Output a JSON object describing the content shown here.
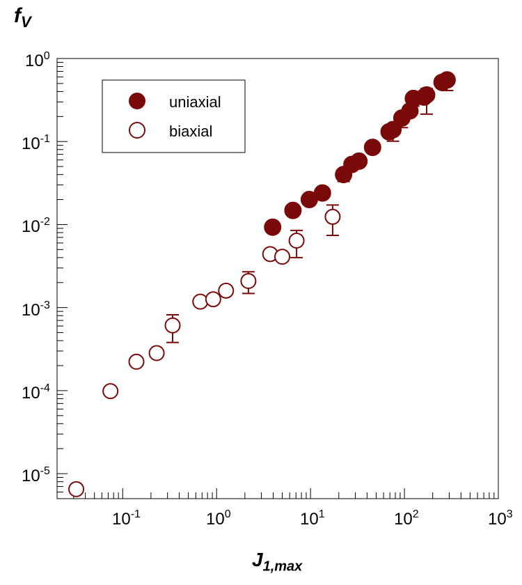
{
  "chart_data": {
    "type": "scatter",
    "x_scale": "log",
    "y_scale": "log",
    "xlim": [
      0.02,
      1000
    ],
    "ylim": [
      5e-06,
      1
    ],
    "grid": false,
    "legend_position": "top-left",
    "ylabel_base": "f",
    "ylabel_sub": "V",
    "xlabel_base": "J",
    "xlabel_sub": "1,max",
    "x_ticks": [
      {
        "base": "10",
        "exp": "-1"
      },
      {
        "base": "10",
        "exp": "0"
      },
      {
        "base": "10",
        "exp": "1"
      },
      {
        "base": "10",
        "exp": "2"
      },
      {
        "base": "10",
        "exp": "3"
      }
    ],
    "y_ticks": [
      {
        "base": "10",
        "exp": "-5"
      },
      {
        "base": "10",
        "exp": "-4"
      },
      {
        "base": "10",
        "exp": "-3"
      },
      {
        "base": "10",
        "exp": "-2"
      },
      {
        "base": "10",
        "exp": "-1"
      },
      {
        "base": "10",
        "exp": "0"
      }
    ],
    "marker_color": "#7a0a0a",
    "series": [
      {
        "name": "uniaxial",
        "marker": "filled-circle",
        "points": [
          {
            "x": 3.95,
            "y": 0.0093
          },
          {
            "x": 6.5,
            "y": 0.0148
          },
          {
            "x": 9.7,
            "y": 0.02
          },
          {
            "x": 13.4,
            "y": 0.024
          },
          {
            "x": 22.5,
            "y": 0.04,
            "err_low": 0.033
          },
          {
            "x": 27.6,
            "y": 0.053
          },
          {
            "x": 32.8,
            "y": 0.058
          },
          {
            "x": 45.8,
            "y": 0.085
          },
          {
            "x": 68.6,
            "y": 0.131
          },
          {
            "x": 75.5,
            "y": 0.139,
            "err_low": 0.101
          },
          {
            "x": 93.9,
            "y": 0.192,
            "err_low": 0.147
          },
          {
            "x": 114.4,
            "y": 0.234
          },
          {
            "x": 124.5,
            "y": 0.33,
            "err_low": 0.267
          },
          {
            "x": 161.5,
            "y": 0.343
          },
          {
            "x": 172.4,
            "y": 0.364,
            "err_low": 0.214,
            "err_high": 0.435
          },
          {
            "x": 251.6,
            "y": 0.516
          },
          {
            "x": 284.7,
            "y": 0.552,
            "err_low": 0.411
          }
        ]
      },
      {
        "name": "biaxial",
        "marker": "open-circle",
        "points": [
          {
            "x": 0.032,
            "y": 6.5e-06
          },
          {
            "x": 0.074,
            "y": 9.85e-05
          },
          {
            "x": 0.14,
            "y": 0.000223
          },
          {
            "x": 0.23,
            "y": 0.000283
          },
          {
            "x": 0.34,
            "y": 0.00061,
            "err_low": 0.00038,
            "err_high": 0.00082
          },
          {
            "x": 0.67,
            "y": 0.00118
          },
          {
            "x": 0.92,
            "y": 0.00126
          },
          {
            "x": 1.26,
            "y": 0.0016
          },
          {
            "x": 2.18,
            "y": 0.00209,
            "err_low": 0.00148,
            "err_high": 0.0027
          },
          {
            "x": 3.72,
            "y": 0.00441
          },
          {
            "x": 5.0,
            "y": 0.0041
          },
          {
            "x": 7.1,
            "y": 0.0064,
            "err_low": 0.004,
            "err_high": 0.0085
          },
          {
            "x": 17.2,
            "y": 0.0124,
            "err_low": 0.0074,
            "err_high": 0.0172
          }
        ]
      }
    ]
  }
}
